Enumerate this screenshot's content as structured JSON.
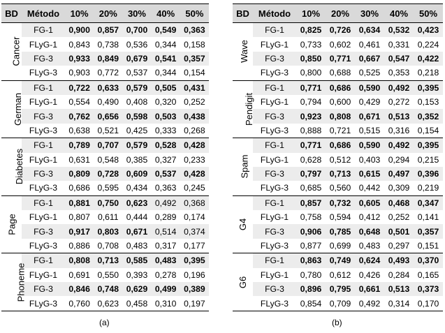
{
  "header": [
    "BD",
    "Método",
    "10%",
    "20%",
    "30%",
    "40%",
    "50%"
  ],
  "panels": [
    {
      "caption": "(a)",
      "groups": [
        {
          "name": "Cancer",
          "rows": [
            {
              "method": "FG-1",
              "values": [
                "0,900",
                "0,857",
                "0,700",
                "0,549",
                "0,363"
              ],
              "bold": [
                true,
                true,
                true,
                true,
                true
              ]
            },
            {
              "method": "FLyG-1",
              "values": [
                "0,843",
                "0,738",
                "0,536",
                "0,344",
                "0,158"
              ],
              "bold": [
                false,
                false,
                false,
                false,
                false
              ]
            },
            {
              "method": "FG-3",
              "values": [
                "0,933",
                "0,849",
                "0,679",
                "0,541",
                "0,357"
              ],
              "bold": [
                true,
                true,
                true,
                true,
                true
              ]
            },
            {
              "method": "FLyG-3",
              "values": [
                "0,903",
                "0,772",
                "0,537",
                "0,344",
                "0,154"
              ],
              "bold": [
                false,
                false,
                false,
                false,
                false
              ]
            }
          ]
        },
        {
          "name": "German",
          "rows": [
            {
              "method": "FG-1",
              "values": [
                "0,722",
                "0,633",
                "0,579",
                "0,505",
                "0,431"
              ],
              "bold": [
                true,
                true,
                true,
                true,
                true
              ]
            },
            {
              "method": "FLyG-1",
              "values": [
                "0,554",
                "0,490",
                "0,408",
                "0,320",
                "0,252"
              ],
              "bold": [
                false,
                false,
                false,
                false,
                false
              ]
            },
            {
              "method": "FG-3",
              "values": [
                "0,762",
                "0,656",
                "0,598",
                "0,503",
                "0,438"
              ],
              "bold": [
                true,
                true,
                true,
                true,
                true
              ]
            },
            {
              "method": "FLyG-3",
              "values": [
                "0,638",
                "0,521",
                "0,425",
                "0,333",
                "0,268"
              ],
              "bold": [
                false,
                false,
                false,
                false,
                false
              ]
            }
          ]
        },
        {
          "name": "Diabetes",
          "rows": [
            {
              "method": "FG-1",
              "values": [
                "0,789",
                "0,707",
                "0,579",
                "0,528",
                "0,428"
              ],
              "bold": [
                true,
                true,
                true,
                true,
                true
              ]
            },
            {
              "method": "FLyG-1",
              "values": [
                "0,631",
                "0,548",
                "0,385",
                "0,327",
                "0,233"
              ],
              "bold": [
                false,
                false,
                false,
                false,
                false
              ]
            },
            {
              "method": "FG-3",
              "values": [
                "0,809",
                "0,728",
                "0,609",
                "0,537",
                "0,428"
              ],
              "bold": [
                true,
                true,
                true,
                true,
                true
              ]
            },
            {
              "method": "FLyG-3",
              "values": [
                "0,686",
                "0,595",
                "0,434",
                "0,363",
                "0,245"
              ],
              "bold": [
                false,
                false,
                false,
                false,
                false
              ]
            }
          ]
        },
        {
          "name": "Page",
          "rows": [
            {
              "method": "FG-1",
              "values": [
                "0,881",
                "0,750",
                "0,623",
                "0,492",
                "0,368"
              ],
              "bold": [
                true,
                true,
                true,
                false,
                false
              ]
            },
            {
              "method": "FLyG-1",
              "values": [
                "0,807",
                "0,611",
                "0,444",
                "0,289",
                "0,174"
              ],
              "bold": [
                false,
                false,
                false,
                false,
                false
              ]
            },
            {
              "method": "FG-3",
              "values": [
                "0,917",
                "0,803",
                "0,671",
                "0,514",
                "0,374"
              ],
              "bold": [
                true,
                true,
                true,
                false,
                false
              ]
            },
            {
              "method": "FLyG-3",
              "values": [
                "0,886",
                "0,708",
                "0,483",
                "0,317",
                "0,177"
              ],
              "bold": [
                false,
                false,
                false,
                false,
                false
              ]
            }
          ]
        },
        {
          "name": "Phoneme",
          "rows": [
            {
              "method": "FG-1",
              "values": [
                "0,808",
                "0,713",
                "0,585",
                "0,483",
                "0,395"
              ],
              "bold": [
                true,
                true,
                true,
                true,
                true
              ]
            },
            {
              "method": "FLyG-1",
              "values": [
                "0,691",
                "0,550",
                "0,393",
                "0,278",
                "0,196"
              ],
              "bold": [
                false,
                false,
                false,
                false,
                false
              ]
            },
            {
              "method": "FG-3",
              "values": [
                "0,846",
                "0,748",
                "0,629",
                "0,499",
                "0,389"
              ],
              "bold": [
                true,
                true,
                true,
                true,
                true
              ]
            },
            {
              "method": "FLyG-3",
              "values": [
                "0,760",
                "0,623",
                "0,458",
                "0,310",
                "0,197"
              ],
              "bold": [
                false,
                false,
                false,
                false,
                false
              ]
            }
          ]
        }
      ]
    },
    {
      "caption": "(b)",
      "groups": [
        {
          "name": "Wave",
          "rows": [
            {
              "method": "FG-1",
              "values": [
                "0,825",
                "0,726",
                "0,634",
                "0,532",
                "0,423"
              ],
              "bold": [
                true,
                true,
                true,
                true,
                true
              ]
            },
            {
              "method": "FLyG-1",
              "values": [
                "0,733",
                "0,602",
                "0,461",
                "0,331",
                "0,224"
              ],
              "bold": [
                false,
                false,
                false,
                false,
                false
              ]
            },
            {
              "method": "FG-3",
              "values": [
                "0,850",
                "0,771",
                "0,667",
                "0,547",
                "0,422"
              ],
              "bold": [
                true,
                true,
                true,
                true,
                true
              ]
            },
            {
              "method": "FLyG-3",
              "values": [
                "0,800",
                "0,688",
                "0,525",
                "0,353",
                "0,218"
              ],
              "bold": [
                false,
                false,
                false,
                false,
                false
              ]
            }
          ]
        },
        {
          "name": "Pendigit",
          "rows": [
            {
              "method": "FG-1",
              "values": [
                "0,771",
                "0,686",
                "0,590",
                "0,492",
                "0,395"
              ],
              "bold": [
                true,
                true,
                true,
                true,
                true
              ]
            },
            {
              "method": "FLyG-1",
              "values": [
                "0,794",
                "0,600",
                "0,429",
                "0,272",
                "0,153"
              ],
              "bold": [
                false,
                false,
                false,
                false,
                false
              ]
            },
            {
              "method": "FG-3",
              "values": [
                "0,923",
                "0,808",
                "0,671",
                "0,513",
                "0,352"
              ],
              "bold": [
                true,
                true,
                true,
                true,
                true
              ]
            },
            {
              "method": "FLyG-3",
              "values": [
                "0,888",
                "0,721",
                "0,515",
                "0,316",
                "0,154"
              ],
              "bold": [
                false,
                false,
                false,
                false,
                false
              ]
            }
          ]
        },
        {
          "name": "Spam",
          "rows": [
            {
              "method": "FG-1",
              "values": [
                "0,771",
                "0,686",
                "0,590",
                "0,492",
                "0,395"
              ],
              "bold": [
                true,
                true,
                true,
                true,
                true
              ]
            },
            {
              "method": "FLyG-1",
              "values": [
                "0,628",
                "0,512",
                "0,403",
                "0,294",
                "0,215"
              ],
              "bold": [
                false,
                false,
                false,
                false,
                false
              ]
            },
            {
              "method": "FG-3",
              "values": [
                "0,797",
                "0,713",
                "0,615",
                "0,497",
                "0,396"
              ],
              "bold": [
                true,
                true,
                true,
                true,
                true
              ]
            },
            {
              "method": "FLyG-3",
              "values": [
                "0,685",
                "0,560",
                "0,442",
                "0,309",
                "0,219"
              ],
              "bold": [
                false,
                false,
                false,
                false,
                false
              ]
            }
          ]
        },
        {
          "name": "G4",
          "rows": [
            {
              "method": "FG-1",
              "values": [
                "0,857",
                "0,732",
                "0,605",
                "0,468",
                "0,347"
              ],
              "bold": [
                true,
                true,
                true,
                true,
                true
              ]
            },
            {
              "method": "FLyG-1",
              "values": [
                "0,758",
                "0,594",
                "0,412",
                "0,252",
                "0,141"
              ],
              "bold": [
                false,
                false,
                false,
                false,
                false
              ]
            },
            {
              "method": "FG-3",
              "values": [
                "0,906",
                "0,785",
                "0,648",
                "0,501",
                "0,357"
              ],
              "bold": [
                true,
                true,
                true,
                true,
                true
              ]
            },
            {
              "method": "FLyG-3",
              "values": [
                "0,877",
                "0,699",
                "0,483",
                "0,297",
                "0,151"
              ],
              "bold": [
                false,
                false,
                false,
                false,
                false
              ]
            }
          ]
        },
        {
          "name": "G6",
          "rows": [
            {
              "method": "FG-1",
              "values": [
                "0,863",
                "0,749",
                "0,624",
                "0,493",
                "0,370"
              ],
              "bold": [
                true,
                true,
                true,
                true,
                true
              ]
            },
            {
              "method": "FLyG-1",
              "values": [
                "0,780",
                "0,612",
                "0,426",
                "0,284",
                "0,165"
              ],
              "bold": [
                false,
                false,
                false,
                false,
                false
              ]
            },
            {
              "method": "FG-3",
              "values": [
                "0,896",
                "0,795",
                "0,661",
                "0,513",
                "0,373"
              ],
              "bold": [
                true,
                true,
                true,
                true,
                true
              ]
            },
            {
              "method": "FLyG-3",
              "values": [
                "0,854",
                "0,709",
                "0,492",
                "0,314",
                "0,170"
              ],
              "bold": [
                false,
                false,
                false,
                false,
                false
              ]
            }
          ]
        }
      ]
    }
  ]
}
